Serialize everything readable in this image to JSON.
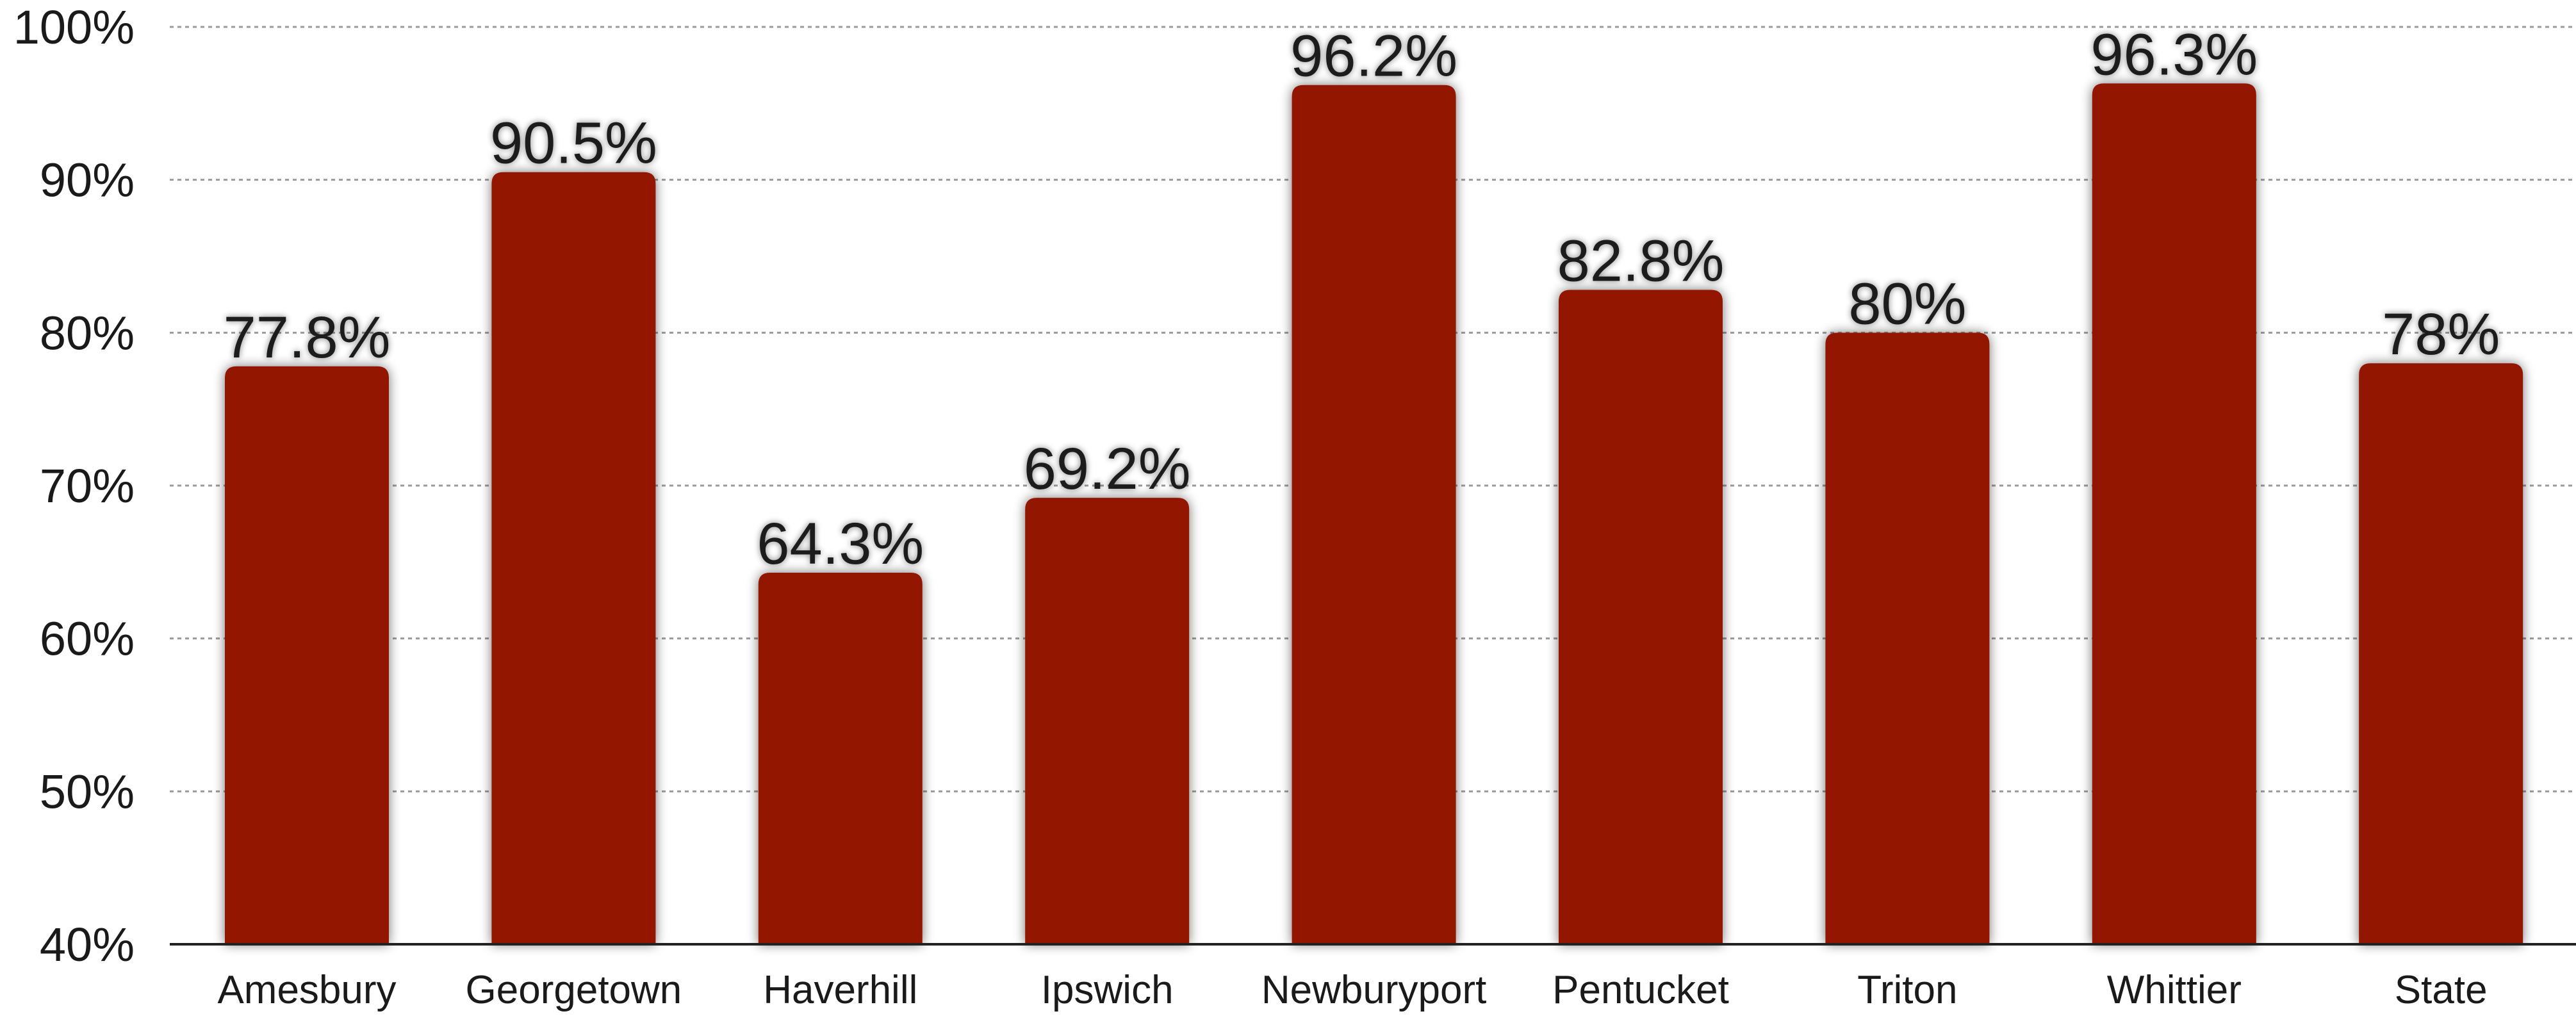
{
  "chart_data": {
    "type": "bar",
    "categories": [
      "Amesbury",
      "Georgetown",
      "Haverhill",
      "Ipswich",
      "Newburyport",
      "Pentucket",
      "Triton",
      "Whittier",
      "State"
    ],
    "values": [
      77.8,
      90.5,
      64.3,
      69.2,
      96.2,
      82.8,
      80,
      96.3,
      78
    ],
    "data_labels": [
      "77.8%",
      "90.5%",
      "64.3%",
      "69.2%",
      "96.2%",
      "82.8%",
      "80%",
      "96.3%",
      "78%"
    ],
    "title": "",
    "xlabel": "",
    "ylabel": "",
    "ylim": [
      40,
      100
    ],
    "yticks": [
      40,
      50,
      60,
      70,
      80,
      90,
      100
    ],
    "ytick_labels": [
      "40%",
      "50%",
      "60%",
      "70%",
      "80%",
      "90%",
      "100%"
    ],
    "grid": true,
    "legend": "none",
    "bar_color": "#921200"
  }
}
